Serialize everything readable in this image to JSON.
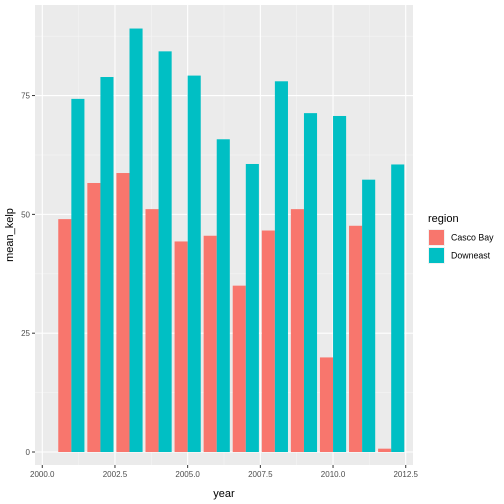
{
  "chart_data": {
    "type": "bar",
    "title": "",
    "xlabel": "year",
    "ylabel": "mean_kelp",
    "xlim": [
      2000.0,
      2012.5
    ],
    "ylim": [
      0,
      93
    ],
    "x_ticks": [
      2000.0,
      2002.5,
      2005.0,
      2007.5,
      2010.0,
      2012.5
    ],
    "x_tick_labels": [
      "2000.0",
      "2002.5",
      "2005.0",
      "2007.5",
      "2010.0",
      "2012.5"
    ],
    "y_ticks": [
      0,
      25,
      50,
      75
    ],
    "y_tick_labels": [
      "0",
      "25",
      "50",
      "75"
    ],
    "grid": true,
    "legend": {
      "title": "region",
      "position": "right"
    },
    "series": [
      {
        "name": "Casco Bay",
        "color": "#F8766D",
        "x": [
          2001,
          2002,
          2003,
          2004,
          2005,
          2006,
          2007,
          2008,
          2009,
          2010,
          2011,
          2012
        ],
        "values": [
          49,
          56.6,
          58.7,
          51.1,
          44.3,
          45.5,
          35.0,
          46.6,
          51.1,
          19.9,
          47.6,
          0.7
        ]
      },
      {
        "name": "Downeast",
        "color": "#00BFC4",
        "x": [
          2001,
          2002,
          2003,
          2004,
          2005,
          2006,
          2007,
          2008,
          2009,
          2010,
          2011,
          2012
        ],
        "values": [
          74.3,
          78.9,
          89.1,
          84.3,
          79.2,
          65.8,
          60.6,
          78.0,
          71.3,
          70.7,
          57.3,
          60.5
        ]
      }
    ]
  }
}
